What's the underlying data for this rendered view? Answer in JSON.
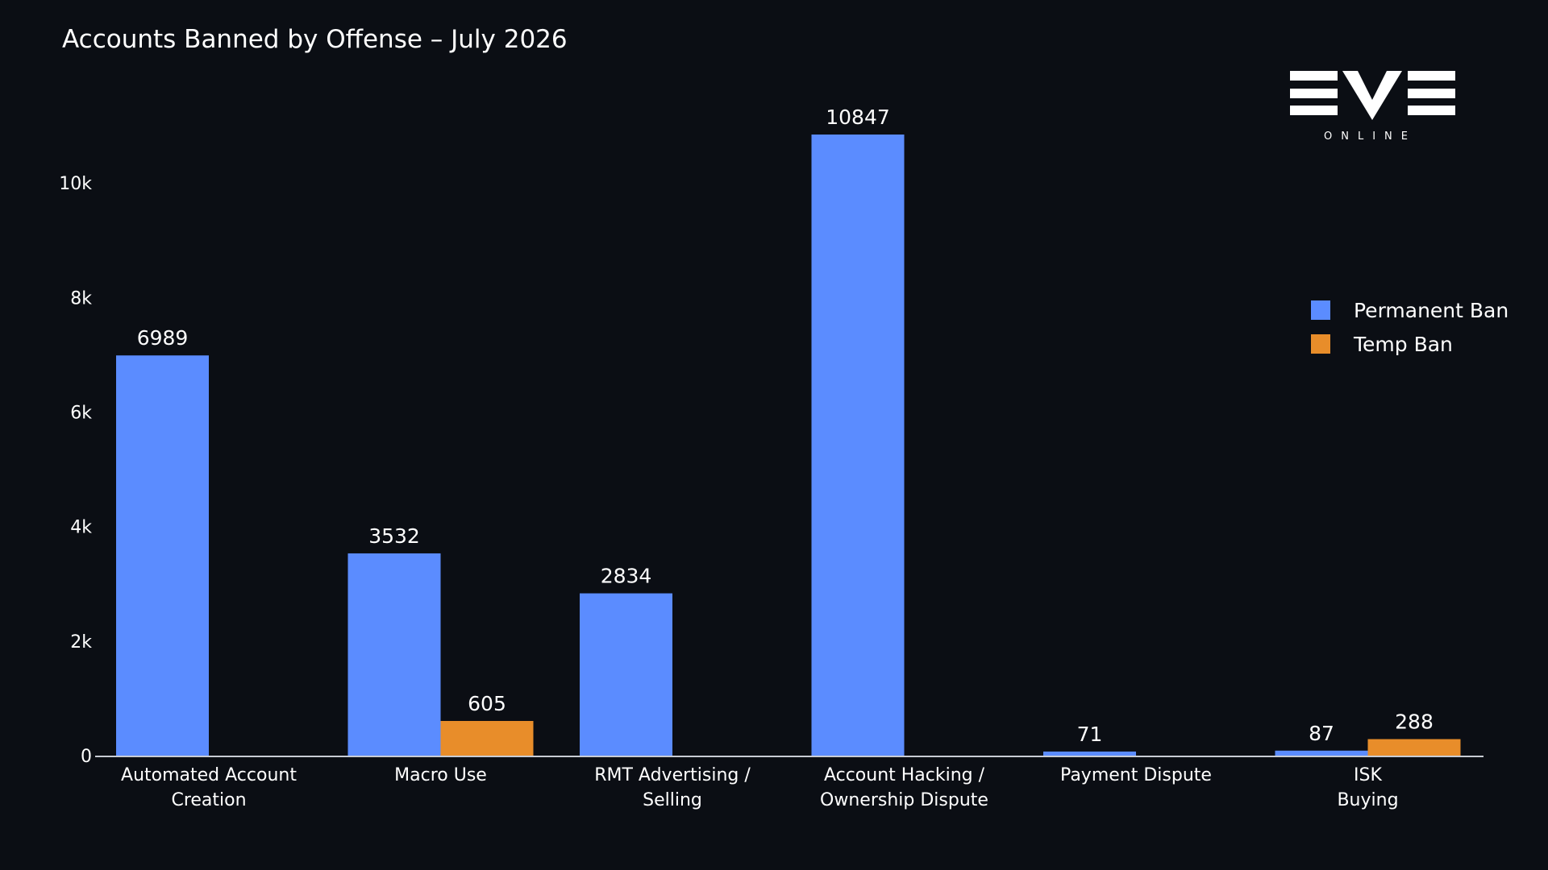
{
  "brand": {
    "logo_text": "EVE",
    "logo_subtext": "ONLINE"
  },
  "colors": {
    "background": "#0b0e14",
    "permanent": "#5b8cff",
    "temp": "#e88d2a",
    "axis": "#c8ccd4",
    "text": "#ffffff"
  },
  "chart_data": {
    "type": "bar",
    "title": "Accounts Banned by Offense – July 2026",
    "xlabel": "",
    "ylabel": "",
    "ylim": [
      0,
      11000
    ],
    "yticks": [
      0,
      2000,
      4000,
      6000,
      8000,
      10000
    ],
    "ytick_labels": [
      "0",
      "2k",
      "4k",
      "6k",
      "8k",
      "10k"
    ],
    "grid": false,
    "legend_position": "right",
    "categories": [
      [
        "Automated Account",
        "Creation"
      ],
      [
        "Macro Use"
      ],
      [
        "RMT Advertising /",
        "Selling"
      ],
      [
        "Account Hacking /",
        "Ownership Dispute"
      ],
      [
        "Payment Dispute"
      ],
      [
        "ISK",
        "Buying"
      ]
    ],
    "series": [
      {
        "name": "Permanent Ban",
        "color": "#5b8cff",
        "values": [
          6989,
          3532,
          2834,
          10847,
          71,
          87
        ]
      },
      {
        "name": "Temp Ban",
        "color": "#e88d2a",
        "values": [
          null,
          605,
          null,
          null,
          null,
          288
        ]
      }
    ]
  }
}
